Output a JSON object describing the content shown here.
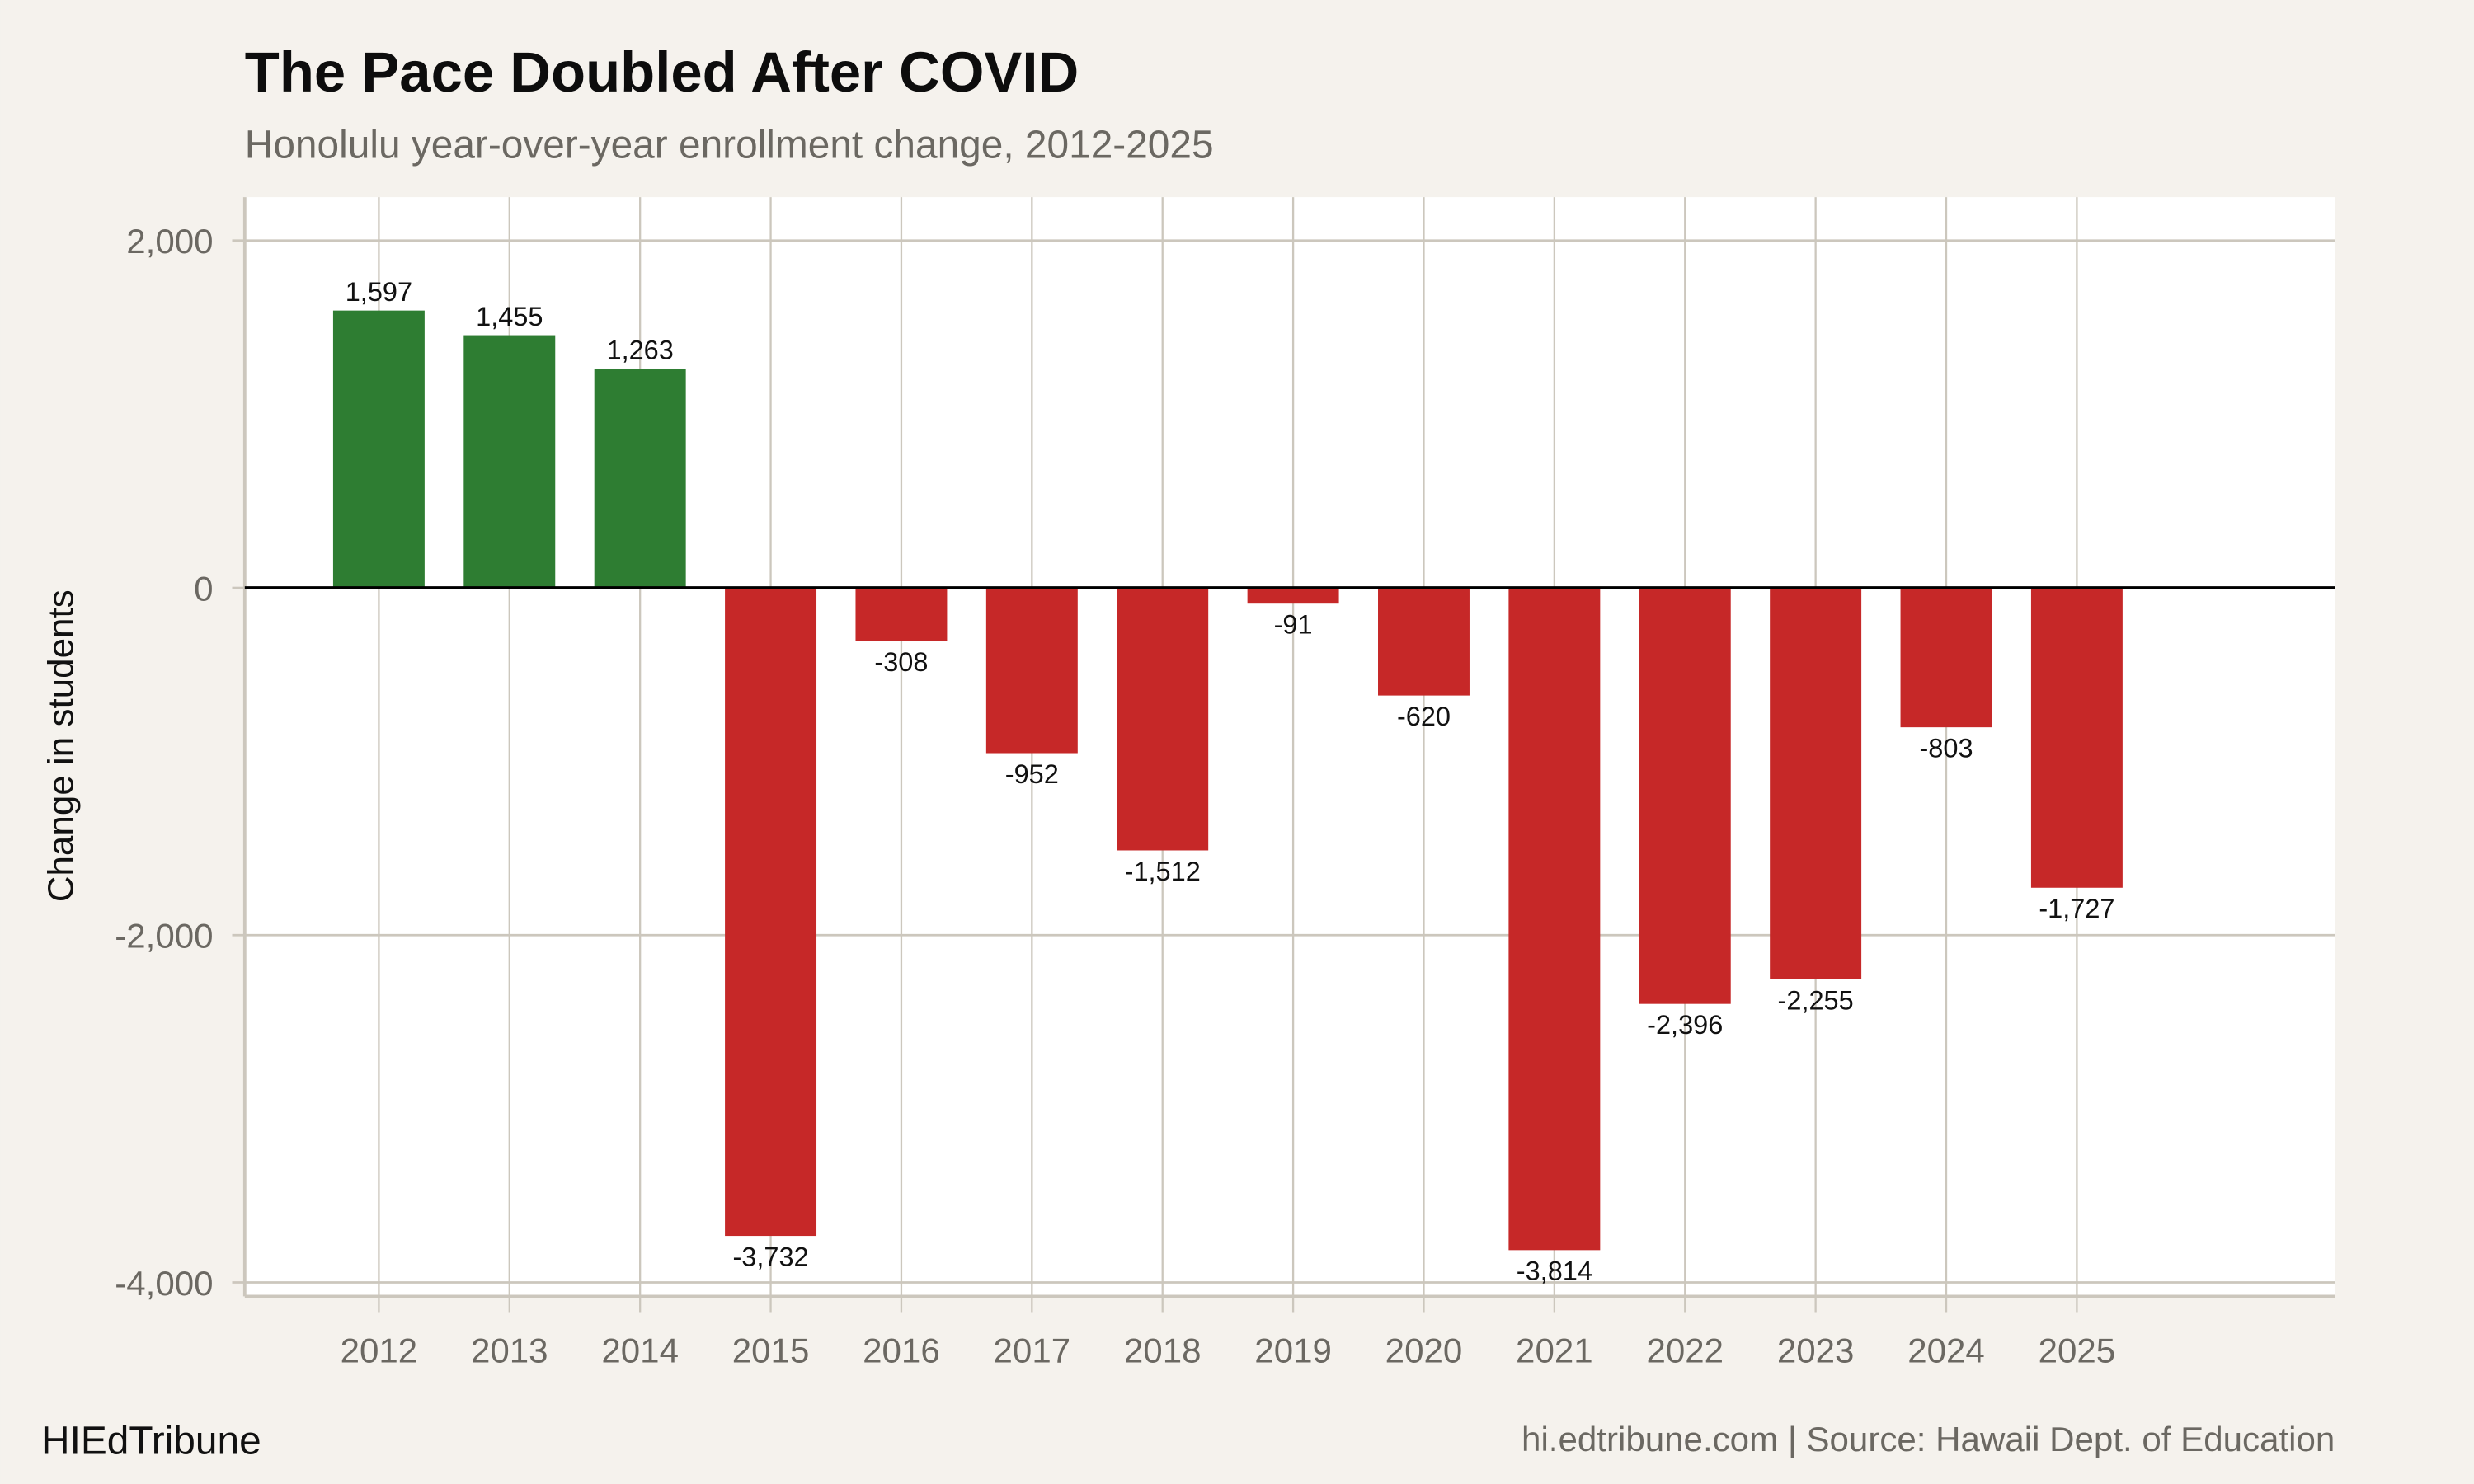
{
  "chart_data": {
    "type": "bar",
    "title": "The Pace Doubled After COVID",
    "subtitle": "Honolulu year-over-year enrollment change, 2012-2025",
    "xlabel": "",
    "ylabel": "Change in students",
    "categories": [
      "2012",
      "2013",
      "2014",
      "2015",
      "2016",
      "2017",
      "2018",
      "2019",
      "2020",
      "2021",
      "2022",
      "2023",
      "2024",
      "2025"
    ],
    "values": [
      1597,
      1455,
      1263,
      -3732,
      -308,
      -952,
      -1512,
      -91,
      -620,
      -3814,
      -2396,
      -2255,
      -803,
      -1727
    ],
    "data_labels": [
      "1,597",
      "1,455",
      "1,263",
      "-3,732",
      "-308",
      "-952",
      "-1,512",
      "-91",
      "-620",
      "-3,814",
      "-2,396",
      "-2,255",
      "-803",
      "-1,727"
    ],
    "ylim": [
      -4080,
      2250
    ],
    "yticks": [
      2000,
      0,
      -2000,
      -4000
    ],
    "ytick_labels": [
      "2,000",
      "0",
      "-2,000",
      "-4,000"
    ],
    "grid": true,
    "legend": "none",
    "colors": {
      "positive": "#2e7d32",
      "negative": "#c62828",
      "background": "#f5f2ed",
      "panel": "#ffffff",
      "grid": "#ccc7bd",
      "zero_line": "#000000"
    }
  },
  "footer": {
    "brand": "HIEdTribune",
    "source": "hi.edtribune.com | Source: Hawaii Dept. of Education"
  }
}
